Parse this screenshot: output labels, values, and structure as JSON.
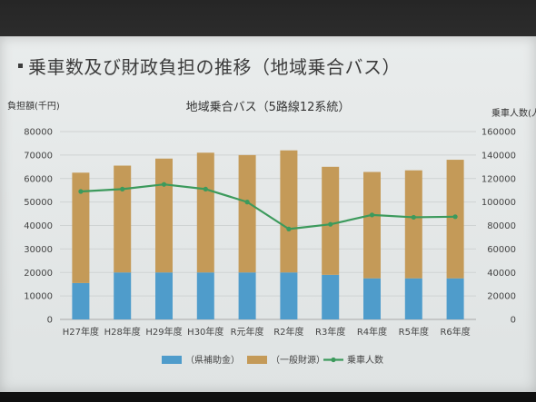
{
  "slide": {
    "title": "乗車数及び財政負担の推移（地域乗合バス）"
  },
  "chart_data": {
    "type": "bar",
    "stacked": true,
    "title": "地域乗合バス（5路線12系統）",
    "ylabel": "負担額(千円)",
    "y2label": "乗車人数(人)",
    "ylim": [
      0,
      80000
    ],
    "y2lim": [
      0,
      160000
    ],
    "yticks": [
      "0",
      "10000",
      "20000",
      "30000",
      "40000",
      "50000",
      "60000",
      "70000",
      "80000"
    ],
    "y2ticks": [
      "0",
      "20000",
      "40000",
      "60000",
      "80000",
      "100000",
      "120000",
      "140000",
      "160000"
    ],
    "grid": true,
    "legend_position": "bottom",
    "categories": [
      "H27年度",
      "H28年度",
      "H29年度",
      "H30年度",
      "R元年度",
      "R2年度",
      "R3年度",
      "R4年度",
      "R5年度",
      "R6年度"
    ],
    "series": [
      {
        "name": "（県補助金）",
        "kind": "bar",
        "axis": "left",
        "color": "#4f9ccb",
        "values": [
          15500,
          20000,
          20000,
          20000,
          20000,
          20000,
          19000,
          17500,
          17500,
          17500
        ]
      },
      {
        "name": "（一般財源）",
        "kind": "bar",
        "axis": "left",
        "color": "#c49a58",
        "values": [
          47000,
          45500,
          48500,
          51000,
          50000,
          52000,
          46000,
          45300,
          46000,
          50500
        ]
      },
      {
        "name": "乗車人数",
        "kind": "line",
        "axis": "right",
        "color": "#3c9a5c",
        "values": [
          109000,
          111000,
          115000,
          111000,
          100000,
          77000,
          81000,
          89000,
          87000,
          87500
        ]
      }
    ]
  }
}
